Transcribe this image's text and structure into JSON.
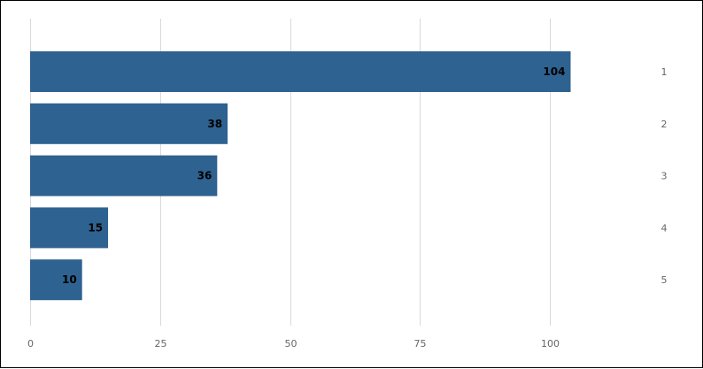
{
  "chart_data": {
    "type": "bar",
    "orientation": "horizontal",
    "categories": [
      "1",
      "2",
      "3",
      "4",
      "5"
    ],
    "values": [
      104,
      38,
      36,
      15,
      10
    ],
    "data_labels": [
      "104",
      "38",
      "36",
      "15",
      "10"
    ],
    "x_ticks": [
      0,
      25,
      50,
      75,
      100
    ],
    "xlim": [
      0,
      120
    ],
    "grid": true,
    "bar_color": "#2e6290",
    "category_label_side": "right",
    "title": "",
    "xlabel": "",
    "ylabel": ""
  }
}
